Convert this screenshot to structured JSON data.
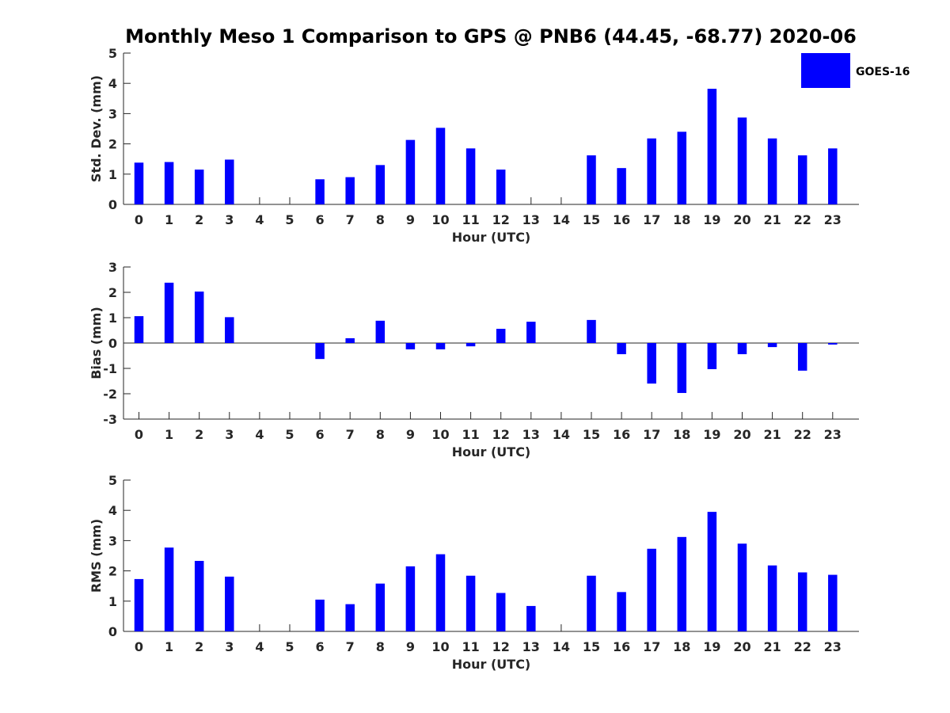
{
  "figure_title": "Monthly Meso 1 Comparison to GPS @ PNB6 (44.45, -68.77) 2020-06",
  "legend": {
    "label": "GOES-16",
    "color": "#0000ff"
  },
  "chart_data": [
    {
      "type": "bar",
      "title": "",
      "xlabel": "Hour (UTC)",
      "ylabel": "Std. Dev. (mm)",
      "ylim": [
        0,
        5
      ],
      "yticks": [
        "0",
        "1",
        "2",
        "3",
        "4",
        "5"
      ],
      "ytick_values": [
        0,
        1,
        2,
        3,
        4,
        5
      ],
      "categories": [
        "0",
        "1",
        "2",
        "3",
        "4",
        "5",
        "6",
        "7",
        "8",
        "9",
        "10",
        "11",
        "12",
        "13",
        "14",
        "15",
        "16",
        "17",
        "18",
        "19",
        "20",
        "21",
        "22",
        "23"
      ],
      "series": [
        {
          "name": "GOES-16",
          "color": "#0000ff",
          "values": [
            1.38,
            1.4,
            1.15,
            1.48,
            null,
            null,
            0.83,
            0.9,
            1.3,
            2.13,
            2.53,
            1.85,
            1.15,
            null,
            null,
            1.62,
            1.2,
            2.18,
            2.4,
            3.82,
            2.87,
            2.18,
            1.62,
            1.85
          ]
        }
      ],
      "grid": false
    },
    {
      "type": "bar",
      "title": "",
      "xlabel": "Hour (UTC)",
      "ylabel": "Bias (mm)",
      "ylim": [
        -3,
        3
      ],
      "yticks": [
        "-3",
        "-2",
        "-1",
        "0",
        "1",
        "2",
        "3"
      ],
      "ytick_values": [
        -3,
        -2,
        -1,
        0,
        1,
        2,
        3
      ],
      "categories": [
        "0",
        "1",
        "2",
        "3",
        "4",
        "5",
        "6",
        "7",
        "8",
        "9",
        "10",
        "11",
        "12",
        "13",
        "14",
        "15",
        "16",
        "17",
        "18",
        "19",
        "20",
        "21",
        "22",
        "23"
      ],
      "series": [
        {
          "name": "GOES-16",
          "color": "#0000ff",
          "values": [
            1.06,
            2.38,
            2.03,
            1.02,
            null,
            null,
            -0.63,
            0.19,
            0.88,
            -0.25,
            -0.25,
            -0.13,
            0.56,
            0.84,
            null,
            0.91,
            -0.44,
            -1.6,
            -1.97,
            -1.03,
            -0.44,
            -0.16,
            -1.09,
            -0.06
          ]
        }
      ],
      "grid": false
    },
    {
      "type": "bar",
      "title": "",
      "xlabel": "Hour (UTC)",
      "ylabel": "RMS (mm)",
      "ylim": [
        0,
        5
      ],
      "yticks": [
        "0",
        "1",
        "2",
        "3",
        "4",
        "5"
      ],
      "ytick_values": [
        0,
        1,
        2,
        3,
        4,
        5
      ],
      "categories": [
        "0",
        "1",
        "2",
        "3",
        "4",
        "5",
        "6",
        "7",
        "8",
        "9",
        "10",
        "11",
        "12",
        "13",
        "14",
        "15",
        "16",
        "17",
        "18",
        "19",
        "20",
        "21",
        "22",
        "23"
      ],
      "series": [
        {
          "name": "GOES-16",
          "color": "#0000ff",
          "values": [
            1.73,
            2.77,
            2.33,
            1.81,
            null,
            null,
            1.05,
            0.9,
            1.58,
            2.15,
            2.55,
            1.84,
            1.27,
            0.84,
            null,
            1.84,
            1.3,
            2.73,
            3.12,
            3.95,
            2.9,
            2.18,
            1.95,
            1.87
          ]
        }
      ],
      "grid": false
    }
  ]
}
